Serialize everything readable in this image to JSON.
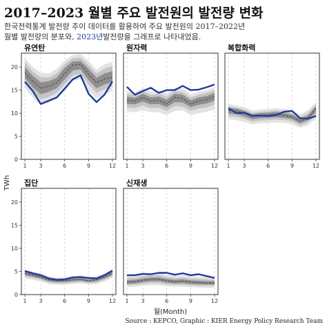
{
  "header": {
    "title": "2017–2023 월별 주요 발전원의 발전량 변화",
    "subtitle_line1": "한국전력통계 발전량 추이 데이터를 활용하여 주요 발전원의 2017–2022년",
    "subtitle_line2_a": "월별 발전량의 분포와, ",
    "subtitle_line2_hl": "2023년",
    "subtitle_line2_b": "발전량을 그래프로 나타내었음."
  },
  "source": "Source : KEPCO, Graphic : KIER Energy Policy Research Team",
  "colors": {
    "line2023": "#1f3a9e",
    "median": "#444444",
    "band_outer": "#e3e3e3",
    "band_mid": "#c4c4c4",
    "band_inner": "#8f8f8f"
  },
  "chart_data": {
    "type": "line",
    "ylabel": "TWh",
    "xlabel": "월(Month)",
    "x": [
      1,
      2,
      3,
      4,
      5,
      6,
      7,
      8,
      9,
      10,
      11,
      12
    ],
    "x_ticks": [
      1,
      3,
      6,
      9,
      12
    ],
    "ylim": [
      0,
      23
    ],
    "y_ticks": [
      0,
      5,
      10,
      15,
      20
    ],
    "grid": "dashed vertical",
    "panels": [
      {
        "name": "유연탄",
        "values_2023": [
          16.8,
          14.8,
          12.0,
          12.7,
          13.4,
          15.3,
          17.3,
          18.2,
          14.2,
          12.4,
          14.0,
          16.9
        ],
        "median": [
          18.8,
          16.9,
          15.4,
          15.8,
          16.6,
          18.6,
          20.4,
          20.6,
          18.4,
          16.6,
          17.4,
          17.8
        ],
        "band_outer": [
          [
            15.5,
            22.0
          ],
          [
            13.3,
            20.0
          ],
          [
            11.7,
            18.8
          ],
          [
            12.2,
            18.6
          ],
          [
            13.1,
            19.6
          ],
          [
            14.8,
            21.4
          ],
          [
            16.9,
            22.6
          ],
          [
            17.4,
            22.8
          ],
          [
            14.9,
            21.3
          ],
          [
            13.2,
            19.4
          ],
          [
            14.0,
            20.6
          ],
          [
            14.9,
            21.2
          ]
        ],
        "band_mid": [
          [
            16.6,
            21.0
          ],
          [
            14.6,
            19.0
          ],
          [
            13.0,
            17.8
          ],
          [
            13.5,
            17.7
          ],
          [
            14.4,
            18.6
          ],
          [
            16.2,
            20.6
          ],
          [
            18.1,
            21.9
          ],
          [
            18.6,
            22.0
          ],
          [
            16.2,
            20.4
          ],
          [
            14.4,
            18.6
          ],
          [
            15.2,
            19.6
          ],
          [
            15.9,
            20.2
          ]
        ],
        "band_inner": [
          [
            17.6,
            20.0
          ],
          [
            15.6,
            18.1
          ],
          [
            14.1,
            16.7
          ],
          [
            14.6,
            16.9
          ],
          [
            15.4,
            17.7
          ],
          [
            17.3,
            19.8
          ],
          [
            19.2,
            21.2
          ],
          [
            19.5,
            21.3
          ],
          [
            17.2,
            19.6
          ],
          [
            15.4,
            17.7
          ],
          [
            16.2,
            18.6
          ],
          [
            16.8,
            19.1
          ]
        ]
      },
      {
        "name": "원자력",
        "values_2023": [
          15.7,
          14.0,
          14.8,
          15.5,
          14.4,
          15.0,
          15.0,
          15.9,
          15.0,
          15.1,
          15.6,
          16.2
        ],
        "median": [
          12.8,
          12.6,
          13.4,
          12.6,
          12.8,
          12.0,
          13.4,
          13.2,
          12.0,
          12.6,
          12.9,
          13.6
        ],
        "band_outer": [
          [
            10.3,
            14.8
          ],
          [
            10.2,
            14.4
          ],
          [
            10.6,
            15.4
          ],
          [
            10.2,
            14.6
          ],
          [
            10.2,
            14.9
          ],
          [
            9.6,
            14.3
          ],
          [
            10.5,
            15.5
          ],
          [
            10.6,
            15.4
          ],
          [
            9.6,
            14.1
          ],
          [
            10.0,
            14.6
          ],
          [
            10.3,
            15.0
          ],
          [
            10.8,
            15.6
          ]
        ],
        "band_mid": [
          [
            11.2,
            14.2
          ],
          [
            11.1,
            13.9
          ],
          [
            11.6,
            14.8
          ],
          [
            11.1,
            14.0
          ],
          [
            11.2,
            14.2
          ],
          [
            10.5,
            13.6
          ],
          [
            11.5,
            14.8
          ],
          [
            11.4,
            14.6
          ],
          [
            10.5,
            13.4
          ],
          [
            11.0,
            14.0
          ],
          [
            11.2,
            14.4
          ],
          [
            11.9,
            15.0
          ]
        ],
        "band_inner": [
          [
            12.0,
            13.6
          ],
          [
            11.9,
            13.3
          ],
          [
            12.5,
            14.2
          ],
          [
            11.9,
            13.4
          ],
          [
            12.0,
            13.6
          ],
          [
            11.3,
            12.9
          ],
          [
            12.4,
            14.2
          ],
          [
            12.3,
            14.0
          ],
          [
            11.3,
            12.8
          ],
          [
            11.8,
            13.4
          ],
          [
            12.1,
            13.7
          ],
          [
            12.7,
            14.4
          ]
        ]
      },
      {
        "name": "복합화력",
        "values_2023": [
          11.1,
          10.0,
          10.1,
          9.4,
          9.5,
          9.4,
          9.6,
          10.3,
          10.5,
          8.9,
          8.8,
          9.4
        ],
        "median": [
          10.6,
          10.5,
          10.0,
          9.3,
          9.5,
          9.6,
          9.8,
          9.5,
          9.2,
          8.2,
          9.0,
          11.0
        ],
        "band_outer": [
          [
            8.7,
            12.0
          ],
          [
            8.5,
            11.7
          ],
          [
            8.1,
            11.3
          ],
          [
            7.6,
            10.6
          ],
          [
            7.8,
            10.8
          ],
          [
            7.9,
            10.9
          ],
          [
            8.0,
            11.1
          ],
          [
            7.9,
            10.9
          ],
          [
            7.6,
            10.6
          ],
          [
            6.8,
            9.8
          ],
          [
            7.4,
            10.6
          ],
          [
            8.8,
            12.4
          ]
        ],
        "band_mid": [
          [
            9.3,
            11.5
          ],
          [
            9.2,
            11.2
          ],
          [
            8.8,
            10.8
          ],
          [
            8.2,
            10.1
          ],
          [
            8.4,
            10.3
          ],
          [
            8.5,
            10.4
          ],
          [
            8.6,
            10.6
          ],
          [
            8.5,
            10.4
          ],
          [
            8.2,
            10.0
          ],
          [
            7.3,
            9.2
          ],
          [
            8.0,
            10.0
          ],
          [
            9.5,
            11.9
          ]
        ],
        "band_inner": [
          [
            9.9,
            11.1
          ],
          [
            9.8,
            11.0
          ],
          [
            9.3,
            10.5
          ],
          [
            8.7,
            9.8
          ],
          [
            8.9,
            10.0
          ],
          [
            9.0,
            10.1
          ],
          [
            9.1,
            10.3
          ],
          [
            9.0,
            10.0
          ],
          [
            8.7,
            9.7
          ],
          [
            7.8,
            8.8
          ],
          [
            8.5,
            9.5
          ],
          [
            10.2,
            11.5
          ]
        ]
      },
      {
        "name": "집단",
        "values_2023": [
          5.1,
          4.6,
          4.2,
          3.5,
          3.2,
          3.3,
          3.7,
          3.8,
          3.6,
          3.5,
          4.2,
          5.2
        ],
        "median": [
          4.6,
          4.2,
          3.8,
          3.2,
          3.0,
          3.0,
          3.2,
          3.3,
          3.0,
          3.2,
          3.8,
          4.7
        ],
        "band_outer": [
          [
            3.5,
            5.4
          ],
          [
            3.2,
            5.0
          ],
          [
            2.8,
            4.6
          ],
          [
            2.3,
            4.0
          ],
          [
            2.1,
            3.7
          ],
          [
            2.1,
            3.7
          ],
          [
            2.3,
            4.0
          ],
          [
            2.4,
            4.1
          ],
          [
            2.2,
            3.8
          ],
          [
            2.3,
            4.0
          ],
          [
            2.8,
            4.6
          ],
          [
            3.6,
            5.5
          ]
        ],
        "band_mid": [
          [
            3.9,
            5.1
          ],
          [
            3.6,
            4.7
          ],
          [
            3.2,
            4.3
          ],
          [
            2.6,
            3.7
          ],
          [
            2.4,
            3.5
          ],
          [
            2.4,
            3.5
          ],
          [
            2.6,
            3.7
          ],
          [
            2.7,
            3.8
          ],
          [
            2.5,
            3.5
          ],
          [
            2.6,
            3.7
          ],
          [
            3.2,
            4.3
          ],
          [
            4.0,
            5.2
          ]
        ],
        "band_inner": [
          [
            4.2,
            4.9
          ],
          [
            3.9,
            4.5
          ],
          [
            3.5,
            4.1
          ],
          [
            2.9,
            3.5
          ],
          [
            2.7,
            3.3
          ],
          [
            2.7,
            3.3
          ],
          [
            2.9,
            3.5
          ],
          [
            3.0,
            3.6
          ],
          [
            2.7,
            3.3
          ],
          [
            2.9,
            3.5
          ],
          [
            3.5,
            4.1
          ],
          [
            4.3,
            5.0
          ]
        ]
      },
      {
        "name": "신재생",
        "values_2023": [
          4.2,
          4.2,
          4.5,
          4.4,
          4.7,
          4.7,
          4.3,
          4.6,
          4.2,
          4.4,
          4.0,
          3.6
        ],
        "median": [
          2.7,
          2.8,
          3.1,
          3.3,
          3.3,
          3.0,
          2.8,
          2.9,
          2.7,
          2.6,
          2.5,
          2.5
        ],
        "band_outer": [
          [
            1.6,
            4.0
          ],
          [
            1.7,
            4.1
          ],
          [
            1.9,
            4.4
          ],
          [
            2.0,
            4.6
          ],
          [
            2.0,
            4.7
          ],
          [
            1.8,
            4.3
          ],
          [
            1.7,
            4.1
          ],
          [
            1.7,
            4.2
          ],
          [
            1.6,
            4.0
          ],
          [
            1.5,
            3.9
          ],
          [
            1.5,
            3.8
          ],
          [
            1.5,
            3.7
          ]
        ],
        "band_mid": [
          [
            2.0,
            3.6
          ],
          [
            2.1,
            3.6
          ],
          [
            2.3,
            4.0
          ],
          [
            2.5,
            4.2
          ],
          [
            2.5,
            4.2
          ],
          [
            2.2,
            3.8
          ],
          [
            2.1,
            3.6
          ],
          [
            2.1,
            3.7
          ],
          [
            2.0,
            3.5
          ],
          [
            1.9,
            3.4
          ],
          [
            1.9,
            3.3
          ],
          [
            1.9,
            3.2
          ]
        ],
        "band_inner": [
          [
            2.3,
            3.1
          ],
          [
            2.4,
            3.2
          ],
          [
            2.7,
            3.5
          ],
          [
            2.9,
            3.7
          ],
          [
            2.9,
            3.7
          ],
          [
            2.6,
            3.4
          ],
          [
            2.4,
            3.2
          ],
          [
            2.5,
            3.3
          ],
          [
            2.3,
            3.1
          ],
          [
            2.2,
            3.0
          ],
          [
            2.2,
            2.9
          ],
          [
            2.2,
            2.9
          ]
        ]
      }
    ]
  }
}
